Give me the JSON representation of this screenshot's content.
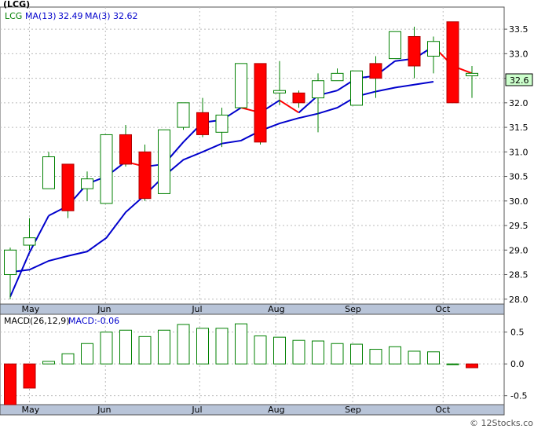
{
  "chart_data": [
    {
      "type": "candlestick",
      "ticker_label": "(LCG)",
      "legend": [
        {
          "label": "LCG",
          "color": "#008000"
        },
        {
          "label": "MA(13)",
          "value": "32.49",
          "color": "#0000cc"
        },
        {
          "label": "MA(3)",
          "value": "32.62",
          "color": "#0000cc"
        }
      ],
      "last_price_label": "32.6",
      "y_ticks": [
        "33.5",
        "33.0",
        "32.5",
        "32.0",
        "31.5",
        "31.0",
        "30.5",
        "30.0",
        "29.5",
        "29.0",
        "28.5",
        "28.0"
      ],
      "ylim": [
        27.9,
        33.95
      ],
      "x_ticks": [
        "May",
        "Jun",
        "Jul",
        "Aug",
        "Sep",
        "Oct"
      ],
      "up_color": "#ffffff",
      "down_color": "#ff0000",
      "candle_border": "#008000",
      "ma_fast_color": "#ff0000",
      "ma_slow_color": "#0000cc",
      "candles": [
        {
          "o": 28.5,
          "h": 29.05,
          "l": 28.0,
          "c": 29.0
        },
        {
          "o": 29.1,
          "h": 29.65,
          "l": 29.0,
          "c": 29.25
        },
        {
          "o": 30.25,
          "h": 31.0,
          "l": 30.25,
          "c": 30.9
        },
        {
          "o": 30.75,
          "h": 30.75,
          "l": 29.65,
          "c": 29.8
        },
        {
          "o": 30.25,
          "h": 30.6,
          "l": 30.0,
          "c": 30.45
        },
        {
          "o": 29.95,
          "h": 31.35,
          "l": 29.95,
          "c": 31.35
        },
        {
          "o": 31.35,
          "h": 31.55,
          "l": 30.7,
          "c": 30.75
        },
        {
          "o": 31.0,
          "h": 31.15,
          "l": 30.0,
          "c": 30.05
        },
        {
          "o": 30.15,
          "h": 31.45,
          "l": 30.15,
          "c": 31.45
        },
        {
          "o": 31.5,
          "h": 32.0,
          "l": 31.45,
          "c": 32.0
        },
        {
          "o": 31.8,
          "h": 32.1,
          "l": 31.3,
          "c": 31.35
        },
        {
          "o": 31.4,
          "h": 31.9,
          "l": 31.1,
          "c": 31.75
        },
        {
          "o": 31.9,
          "h": 32.8,
          "l": 31.9,
          "c": 32.8
        },
        {
          "o": 32.8,
          "h": 32.8,
          "l": 31.15,
          "c": 31.2
        },
        {
          "o": 32.2,
          "h": 32.85,
          "l": 31.95,
          "c": 32.25
        },
        {
          "o": 32.2,
          "h": 32.25,
          "l": 31.9,
          "c": 32.0
        },
        {
          "o": 32.1,
          "h": 32.6,
          "l": 31.4,
          "c": 32.45
        },
        {
          "o": 32.45,
          "h": 32.7,
          "l": 32.45,
          "c": 32.6
        },
        {
          "o": 31.95,
          "h": 32.65,
          "l": 31.95,
          "c": 32.65
        },
        {
          "o": 32.8,
          "h": 32.95,
          "l": 32.1,
          "c": 32.5
        },
        {
          "o": 32.9,
          "h": 33.45,
          "l": 32.9,
          "c": 33.45
        },
        {
          "o": 33.35,
          "h": 33.55,
          "l": 32.5,
          "c": 32.75
        },
        {
          "o": 32.95,
          "h": 33.35,
          "l": 32.6,
          "c": 33.25
        },
        {
          "o": 33.65,
          "h": 33.65,
          "l": 32.0,
          "c": 32.0
        },
        {
          "o": 32.55,
          "h": 32.75,
          "l": 32.1,
          "c": 32.6
        }
      ],
      "ma_slow": [
        28.05,
        28.95,
        29.7,
        29.9,
        30.35,
        30.5,
        30.8,
        30.7,
        30.75,
        31.2,
        31.6,
        31.65,
        31.9,
        31.8,
        32.05,
        31.8,
        32.15,
        32.25,
        32.5,
        32.55,
        32.85,
        32.9,
        33.15,
        32.75,
        32.6
      ],
      "ma_slow_start": 6,
      "ma_slow_values": [
        28.55,
        28.6,
        28.78,
        28.88,
        28.97,
        29.25,
        29.77,
        30.12,
        30.51,
        30.84,
        31.0,
        31.17,
        31.23,
        31.43,
        31.58,
        31.69,
        31.78,
        31.9,
        32.13,
        32.23,
        32.31,
        32.37,
        32.43
      ],
      "ma_slow_x_start": 2
    },
    {
      "type": "bar",
      "legend": [
        {
          "label": "MACD(26,12,9)",
          "color": "#000000"
        },
        {
          "label": "MACD:-0.06",
          "color": "#0000cc"
        }
      ],
      "y_ticks": [
        "0.5",
        "0.0",
        "-0.5"
      ],
      "ylim": [
        -0.64,
        0.78
      ],
      "x_ticks": [
        "May",
        "Jun",
        "Jul",
        "Aug",
        "Sep",
        "Oct"
      ],
      "values": [
        -0.67,
        -0.38,
        0.04,
        0.16,
        0.32,
        0.5,
        0.53,
        0.43,
        0.53,
        0.62,
        0.56,
        0.56,
        0.63,
        0.44,
        0.42,
        0.37,
        0.36,
        0.32,
        0.31,
        0.23,
        0.27,
        0.2,
        0.19,
        0.0,
        -0.06
      ],
      "pos_color": "#ffffff",
      "neg_color": "#ff0000",
      "border_color": "#008000"
    }
  ],
  "watermark": "© 12Stocks.com"
}
